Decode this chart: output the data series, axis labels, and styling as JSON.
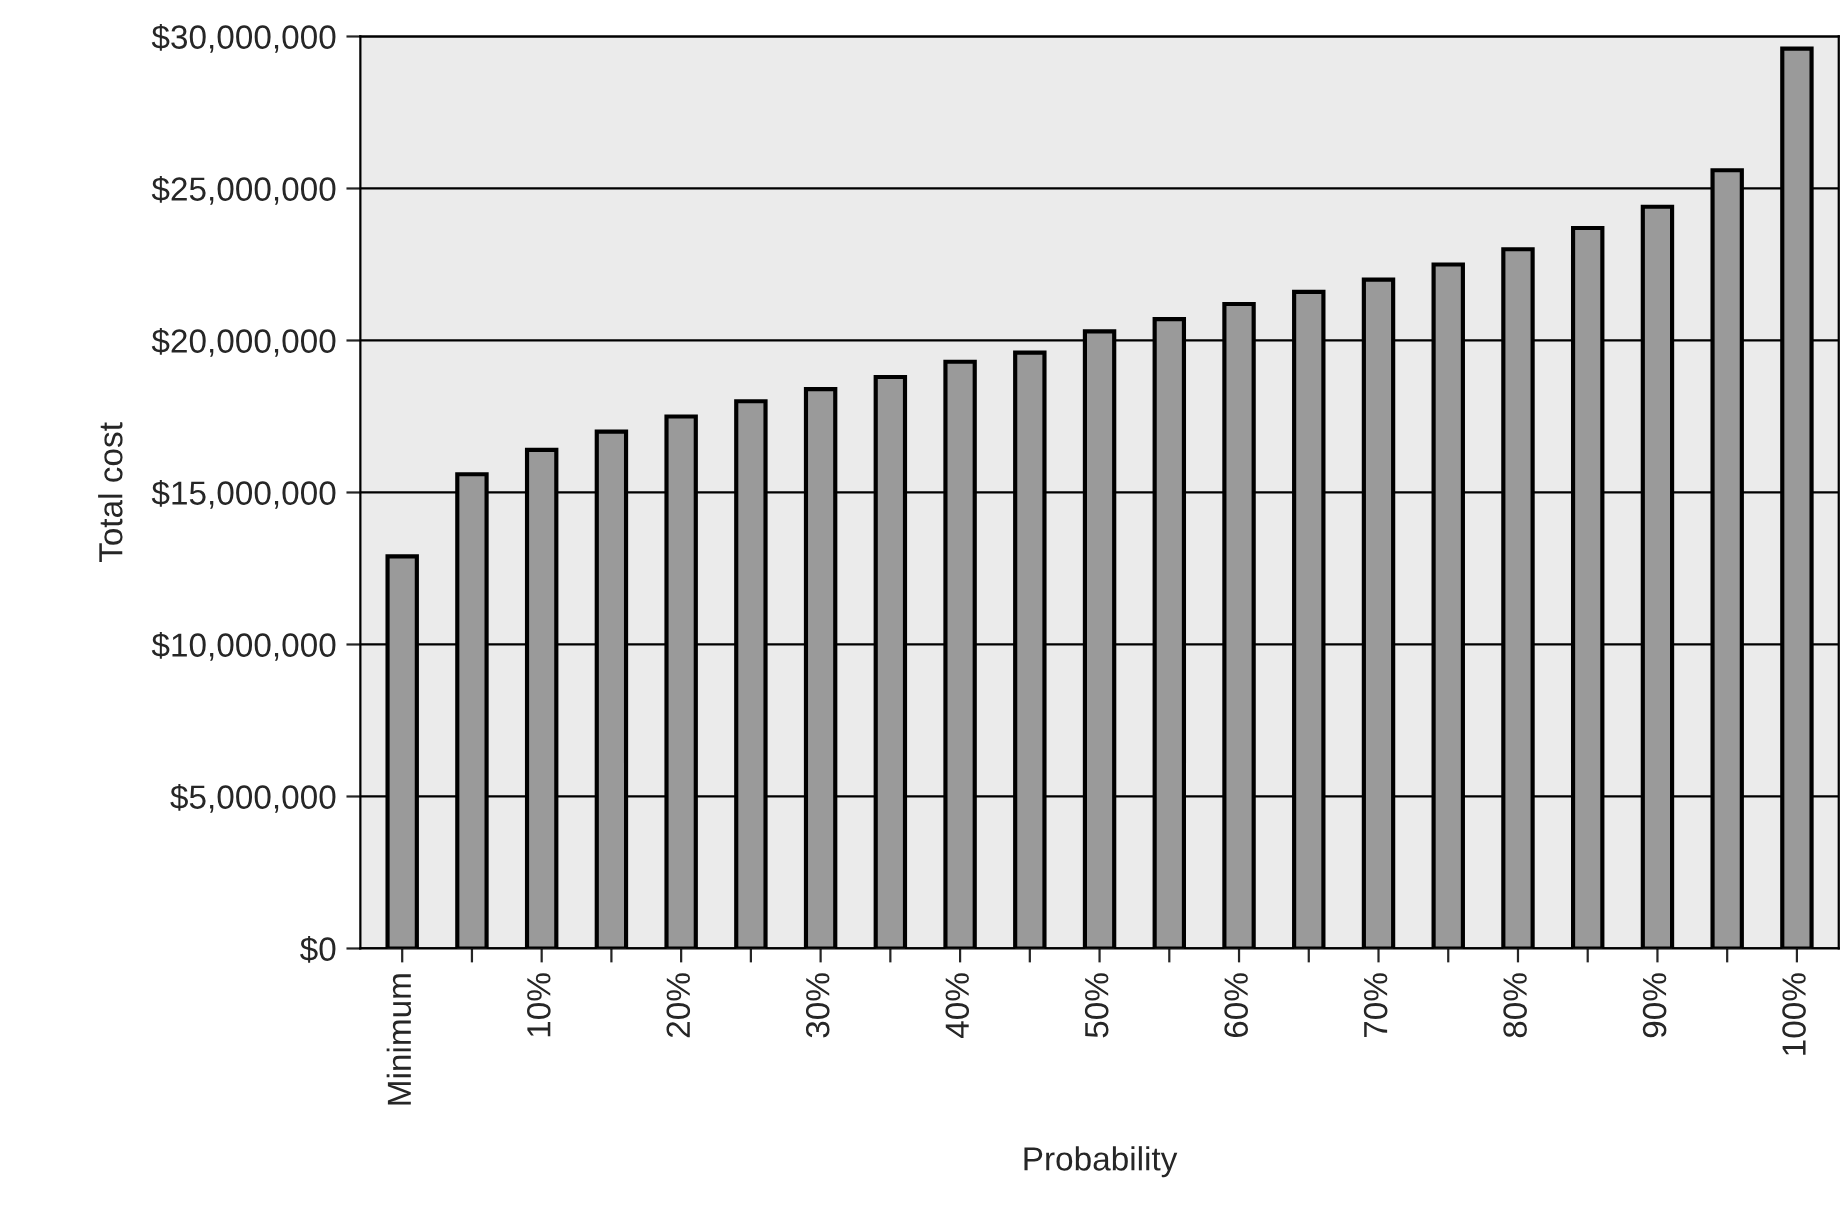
{
  "chart_data": {
    "type": "bar",
    "xlabel": "Probability",
    "ylabel": "Total cost",
    "categories": [
      "Minimum",
      null,
      "10%",
      null,
      "20%",
      null,
      "30%",
      null,
      "40%",
      null,
      "50%",
      null,
      "60%",
      null,
      "70%",
      null,
      "80%",
      null,
      "90%",
      null,
      "100%"
    ],
    "values": [
      12900000,
      15600000,
      16400000,
      17000000,
      17500000,
      18000000,
      18400000,
      18800000,
      19300000,
      19600000,
      20300000,
      20700000,
      21200000,
      21600000,
      22000000,
      22500000,
      23000000,
      23700000,
      24400000,
      25600000,
      29600000
    ],
    "color": "#9a9a9a",
    "ylim": [
      0,
      30000000
    ],
    "yticks": [
      {
        "value": 0,
        "label": "$0"
      },
      {
        "value": 5000000,
        "label": "$5,000,000"
      },
      {
        "value": 10000000,
        "label": "$10,000,000"
      },
      {
        "value": 15000000,
        "label": "$15,000,000"
      },
      {
        "value": 20000000,
        "label": "$20,000,000"
      },
      {
        "value": 25000000,
        "label": "$25,000,000"
      },
      {
        "value": 30000000,
        "label": "$30,000,000"
      }
    ],
    "grid": "y",
    "legend": false
  }
}
